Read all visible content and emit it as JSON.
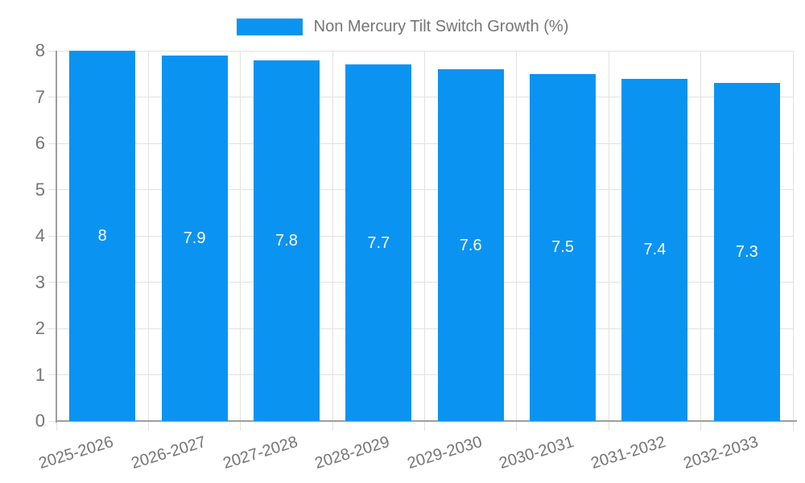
{
  "legend": {
    "label": "Non Mercury Tilt Switch Growth (%)"
  },
  "colors": {
    "bar": "#0b93f2",
    "axis": "#9e9e9e",
    "grid": "#e2e2e2",
    "tick_text": "#757575",
    "data_label_text": "#ffffff"
  },
  "chart_data": {
    "type": "bar",
    "title": "",
    "categories": [
      "2025-2026",
      "2026-2027",
      "2027-2028",
      "2028-2029",
      "2029-2030",
      "2030-2031",
      "2031-2032",
      "2032-2033"
    ],
    "values": [
      8,
      7.9,
      7.8,
      7.7,
      7.6,
      7.5,
      7.4,
      7.3
    ],
    "series_name": "Non Mercury Tilt Switch Growth (%)",
    "xlabel": "",
    "ylabel": "",
    "ylim": [
      0,
      8
    ],
    "yticks": [
      0,
      1,
      2,
      3,
      4,
      5,
      6,
      7,
      8
    ],
    "grid": true,
    "legend_position": "top",
    "data_labels_shown": true
  }
}
